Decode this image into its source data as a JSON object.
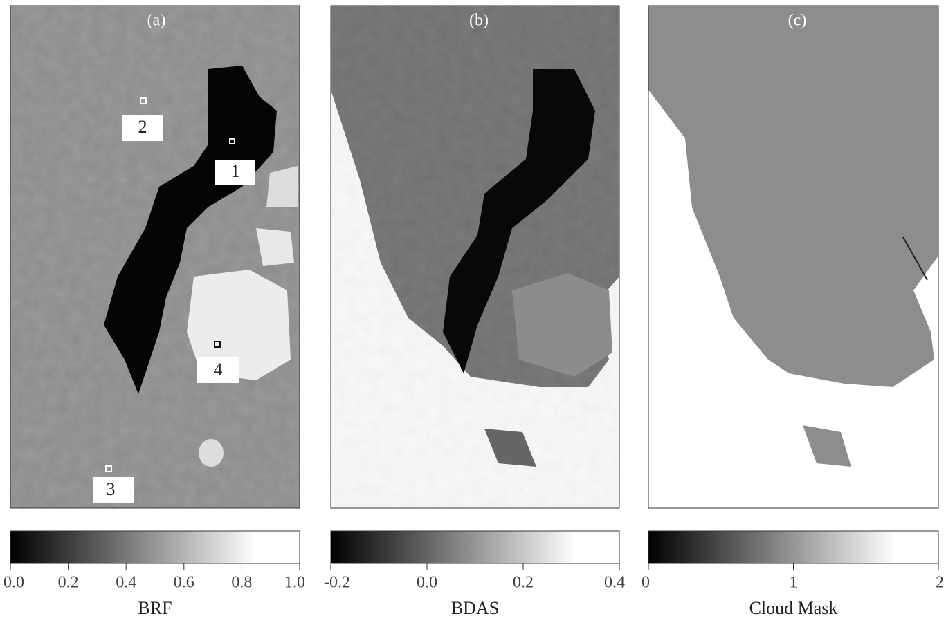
{
  "panels": [
    {
      "label": "(a)",
      "sites": [
        "1",
        "2",
        "3",
        "4"
      ],
      "colorbar": {
        "title": "BRF",
        "lim": [
          0,
          1
        ],
        "ticks": [
          {
            "value": 0,
            "label": "0.0"
          },
          0.2,
          0.4,
          0.6,
          0.8,
          {
            "value": 1,
            "label": "1.0"
          }
        ]
      }
    },
    {
      "label": "(b)",
      "colorbar": {
        "title": "BDAS",
        "lim": [
          -0.2,
          0.4
        ],
        "ticks": [
          -0.2,
          {
            "value": 0,
            "label": "0.0"
          },
          0.2,
          0.4
        ]
      }
    },
    {
      "label": "(c)",
      "colorbar": {
        "title": "Cloud Mask",
        "lim": [
          0,
          2
        ],
        "ticks": [
          0,
          1,
          2
        ]
      }
    }
  ]
}
